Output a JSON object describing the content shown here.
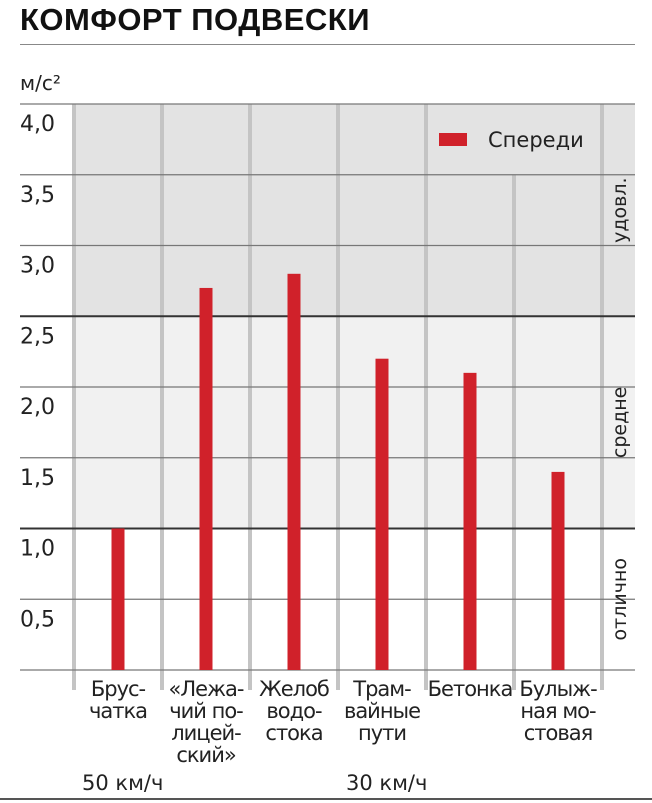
{
  "title": "КОМФОРТ ПОДВЕСКИ",
  "chart_data": {
    "type": "bar",
    "title": "КОМФОРТ ПОДВЕСКИ",
    "ylabel": "м/с²",
    "ylim": [
      0,
      4.0
    ],
    "yticks": [
      "4,0",
      "3,5",
      "3,0",
      "2,5",
      "2,0",
      "1,5",
      "1,0",
      "0,5"
    ],
    "ytick_values": [
      4.0,
      3.5,
      3.0,
      2.5,
      2.0,
      1.5,
      1.0,
      0.5
    ],
    "categories": [
      [
        "Брус-",
        "чатка"
      ],
      [
        "«Лежа-",
        "чий по-",
        "лицей-",
        "ский»"
      ],
      [
        "Желоб",
        "водо-",
        "стока"
      ],
      [
        "Трам-",
        "вайные",
        "пути"
      ],
      [
        "Бетонка"
      ],
      [
        "Булыж-",
        "ная мо-",
        "стовая"
      ]
    ],
    "series": [
      {
        "name": "Спереди",
        "color": "#d0212a",
        "values": [
          1.0,
          2.7,
          2.8,
          2.2,
          2.1,
          1.4
        ]
      }
    ],
    "legend": "top-right",
    "bands": [
      {
        "label": "удовл.",
        "from": 2.5,
        "to": 4.0,
        "color": "#e3e3e3"
      },
      {
        "label": "средне",
        "from": 1.0,
        "to": 2.5,
        "color": "#f1f1f1"
      },
      {
        "label": "отлично",
        "from": 0,
        "to": 1.0,
        "color": "#ffffff"
      }
    ],
    "speed_labels": [
      {
        "text": "50 км/ч",
        "category_index": 0
      },
      {
        "text": "30 км/ч",
        "category_index": 3
      }
    ],
    "grid": true
  }
}
